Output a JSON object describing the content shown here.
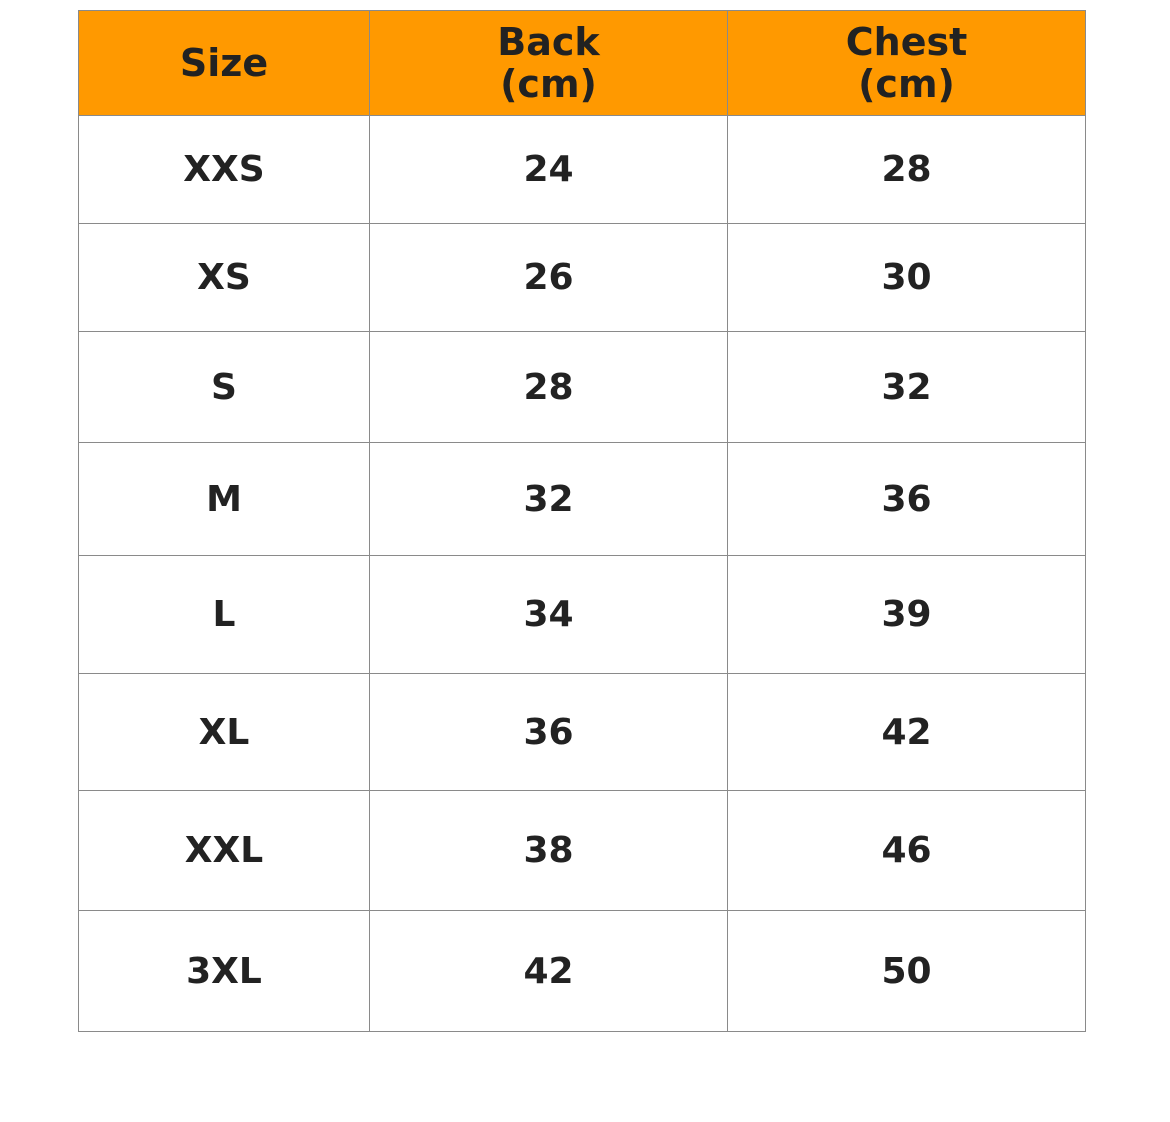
{
  "header_color": "#ff9900",
  "headers": [
    "Size",
    "Back\n(cm)",
    "Chest\n(cm)"
  ],
  "header_lines": [
    [
      "Size"
    ],
    [
      "Back",
      "(cm)"
    ],
    [
      "Chest",
      "(cm)"
    ]
  ],
  "rows": [
    [
      "XXS",
      "24",
      "28"
    ],
    [
      "XS",
      "26",
      "30"
    ],
    [
      "S",
      "28",
      "32"
    ],
    [
      "M",
      "32",
      "36"
    ],
    [
      "L",
      "34",
      "39"
    ],
    [
      "XL",
      "36",
      "42"
    ],
    [
      "XXL",
      "38",
      "46"
    ],
    [
      "3XL",
      "42",
      "50"
    ]
  ]
}
